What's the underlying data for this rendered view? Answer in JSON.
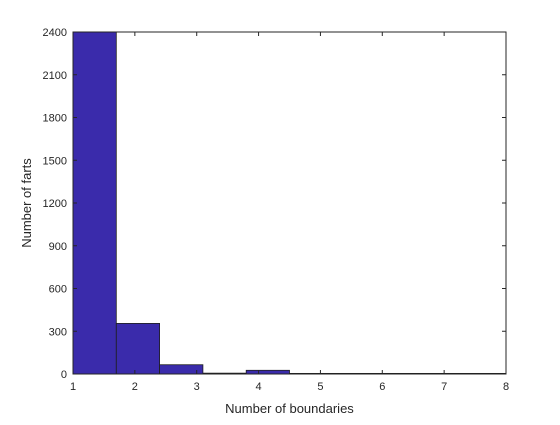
{
  "chart_data": {
    "type": "bar",
    "title": "",
    "xlabel": "Number of boundaries",
    "ylabel": "Number of farts",
    "xlim": [
      1,
      8
    ],
    "ylim": [
      0,
      2400
    ],
    "grid": false,
    "legend": "none",
    "x_ticks": [
      "1",
      "2",
      "3",
      "4",
      "5",
      "6",
      "7",
      "8"
    ],
    "y_ticks": [
      "0",
      "300",
      "600",
      "900",
      "1200",
      "1500",
      "1800",
      "2100",
      "2400"
    ],
    "bins": [
      {
        "start": 1.0,
        "end": 1.7,
        "value": 2400
      },
      {
        "start": 1.7,
        "end": 2.4,
        "value": 355
      },
      {
        "start": 2.4,
        "end": 3.1,
        "value": 65
      },
      {
        "start": 3.1,
        "end": 3.8,
        "value": 6
      },
      {
        "start": 3.8,
        "end": 4.5,
        "value": 26
      },
      {
        "start": 4.5,
        "end": 5.2,
        "value": 2
      },
      {
        "start": 5.2,
        "end": 5.9,
        "value": 2
      },
      {
        "start": 5.9,
        "end": 6.6,
        "value": 3
      },
      {
        "start": 6.6,
        "end": 7.3,
        "value": 2
      },
      {
        "start": 7.3,
        "end": 8.0,
        "value": 2
      }
    ],
    "colors": {
      "bar_fill": "#3a2bab",
      "bar_edge": "#1e1e1e",
      "axis": "#262626"
    }
  }
}
